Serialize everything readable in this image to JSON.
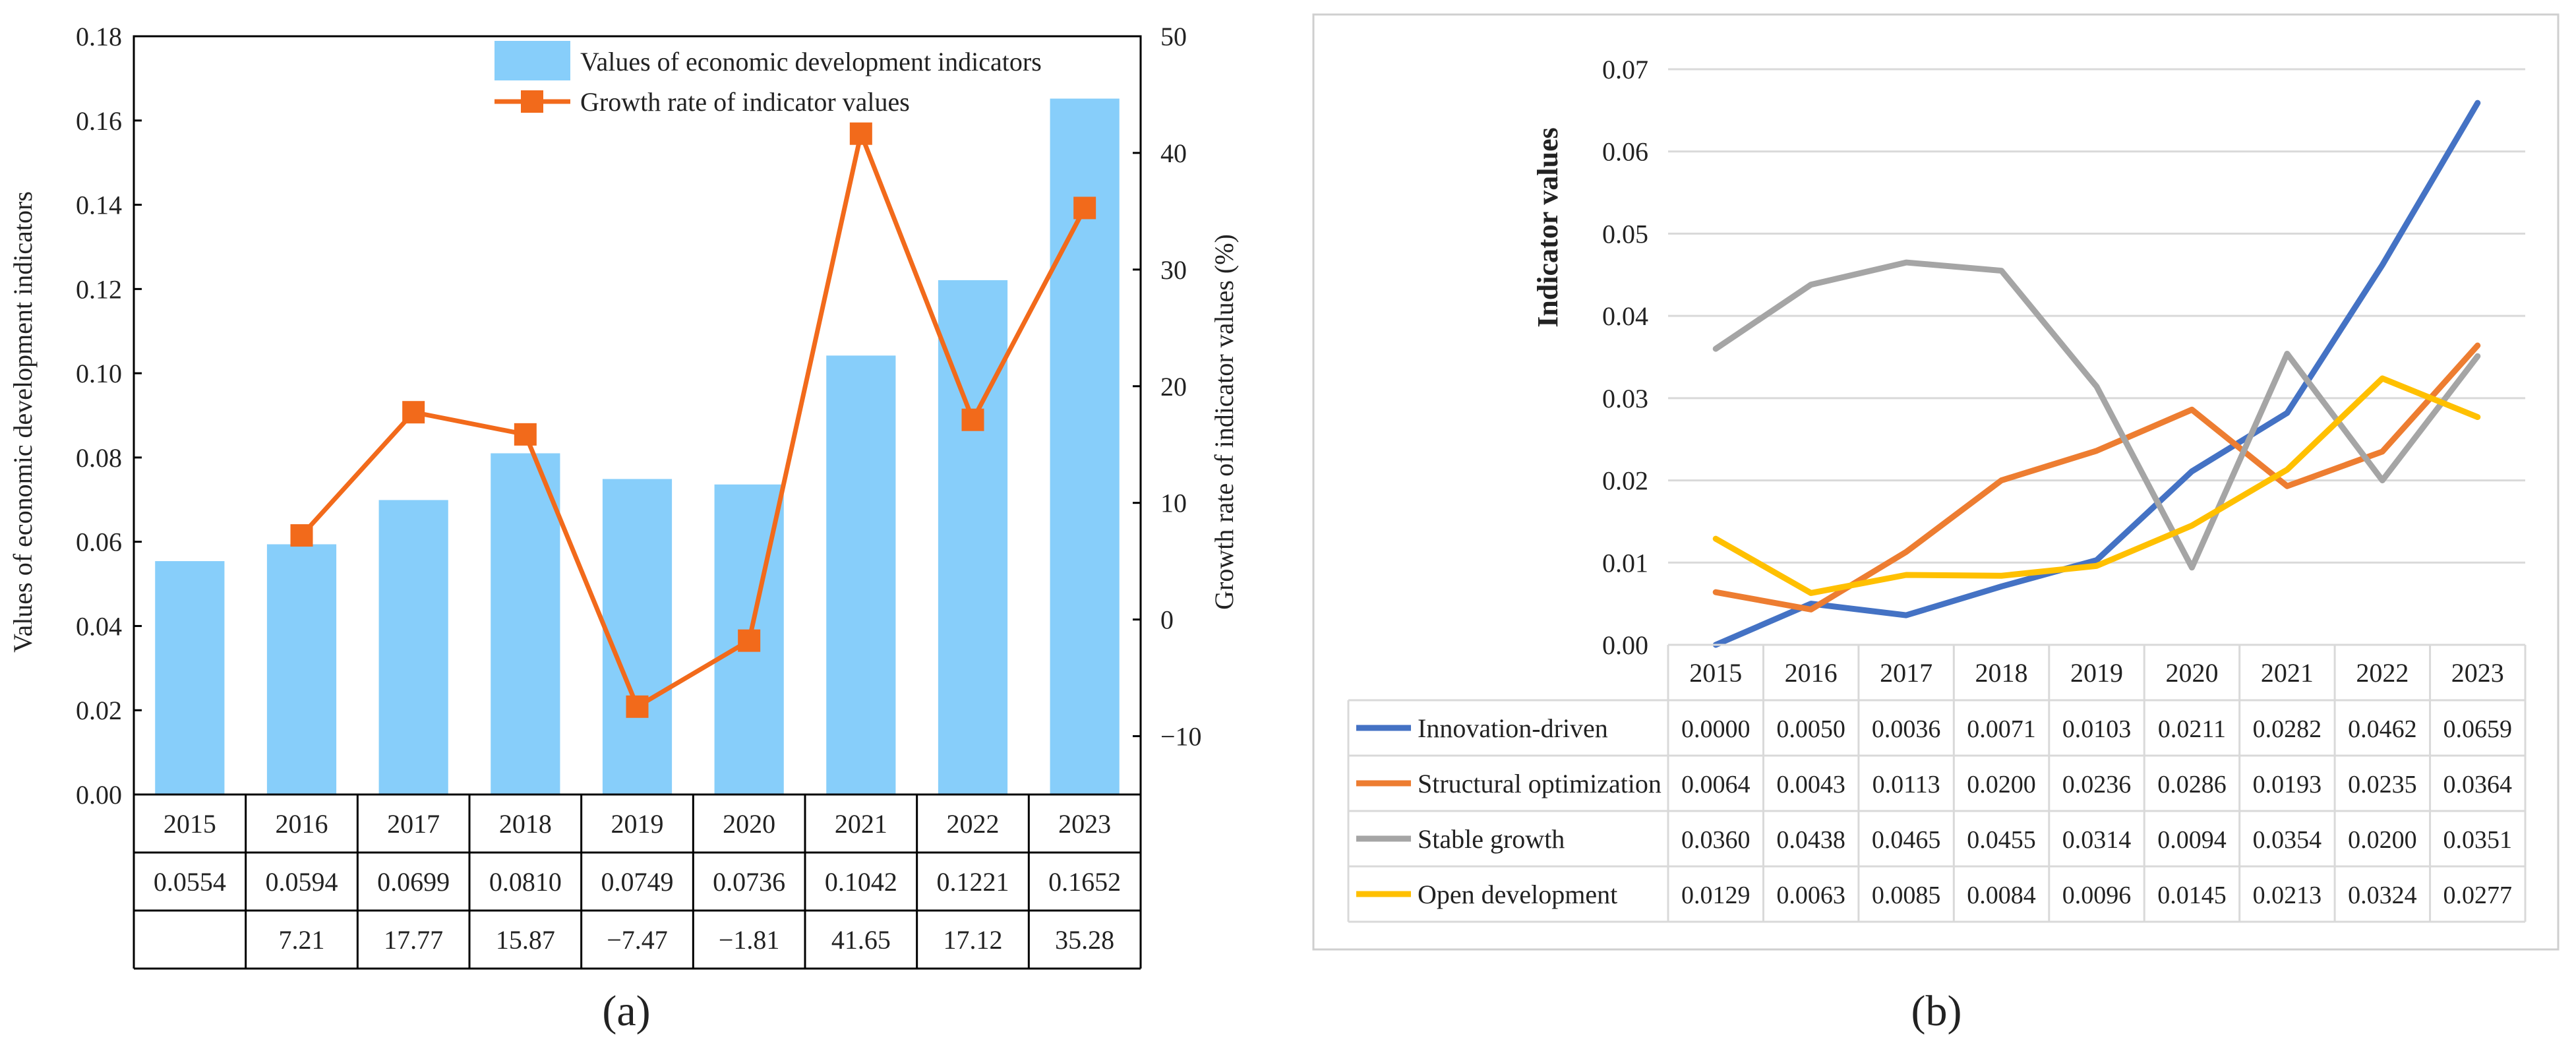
{
  "chart_data": [
    {
      "type": "bar+line",
      "panel_label": "(a)",
      "categories": [
        "2015",
        "2016",
        "2017",
        "2018",
        "2019",
        "2020",
        "2021",
        "2022",
        "2023"
      ],
      "series": [
        {
          "name": "Values of economic development indicators",
          "kind": "bar",
          "axis": "left",
          "color": "#87CEFA",
          "values": [
            0.0554,
            0.0594,
            0.0699,
            0.081,
            0.0749,
            0.0736,
            0.1042,
            0.1221,
            0.1652
          ]
        },
        {
          "name": "Growth rate of indicator values",
          "kind": "line",
          "axis": "right",
          "color": "#F26A1B",
          "values": [
            null,
            7.21,
            17.77,
            15.87,
            -7.47,
            -1.81,
            41.65,
            17.12,
            35.28
          ]
        }
      ],
      "table_rows": [
        [
          "0.0554",
          "0.0594",
          "0.0699",
          "0.0810",
          "0.0749",
          "0.0736",
          "0.1042",
          "0.1221",
          "0.1652"
        ],
        [
          "",
          "7.21",
          "17.77",
          "15.87",
          "−7.47",
          "−1.81",
          "41.65",
          "17.12",
          "35.28"
        ]
      ],
      "ylabel_left": "Values of economic development indicators",
      "ylabel_right": "Growth rate of indicator values (%)",
      "ylim_left": [
        0,
        0.18
      ],
      "yticks_left": [
        "0.00",
        "0.02",
        "0.04",
        "0.06",
        "0.08",
        "0.10",
        "0.12",
        "0.14",
        "0.16",
        "0.18"
      ],
      "ylim_right": [
        -15,
        50
      ],
      "yticks_right": [
        "−10",
        "0",
        "10",
        "20",
        "30",
        "40",
        "50"
      ],
      "legend_position": "top-right"
    },
    {
      "type": "line",
      "panel_label": "(b)",
      "categories": [
        "2015",
        "2016",
        "2017",
        "2018",
        "2019",
        "2020",
        "2021",
        "2022",
        "2023"
      ],
      "ylabel": "Indicator values",
      "ylim": [
        0,
        0.07
      ],
      "yticks": [
        "0.00",
        "0.01",
        "0.02",
        "0.03",
        "0.04",
        "0.05",
        "0.06",
        "0.07"
      ],
      "grid": true,
      "series": [
        {
          "name": "Innovation-driven",
          "color": "#4472C4",
          "values": [
            0.0,
            0.005,
            0.0036,
            0.0071,
            0.0103,
            0.0211,
            0.0282,
            0.0462,
            0.0659
          ],
          "labels": [
            "0.0000",
            "0.0050",
            "0.0036",
            "0.0071",
            "0.0103",
            "0.0211",
            "0.0282",
            "0.0462",
            "0.0659"
          ]
        },
        {
          "name": "Structural optimization",
          "color": "#ED7D31",
          "values": [
            0.0064,
            0.0043,
            0.0113,
            0.02,
            0.0236,
            0.0286,
            0.0193,
            0.0235,
            0.0364
          ],
          "labels": [
            "0.0064",
            "0.0043",
            "0.0113",
            "0.0200",
            "0.0236",
            "0.0286",
            "0.0193",
            "0.0235",
            "0.0364"
          ]
        },
        {
          "name": "Stable growth",
          "color": "#A5A5A5",
          "values": [
            0.036,
            0.0438,
            0.0465,
            0.0455,
            0.0314,
            0.0094,
            0.0354,
            0.02,
            0.0351
          ],
          "labels": [
            "0.0360",
            "0.0438",
            "0.0465",
            "0.0455",
            "0.0314",
            "0.0094",
            "0.0354",
            "0.0200",
            "0.0351"
          ]
        },
        {
          "name": "Open development",
          "color": "#FFC000",
          "values": [
            0.0129,
            0.0063,
            0.0085,
            0.0084,
            0.0096,
            0.0145,
            0.0213,
            0.0324,
            0.0277
          ],
          "labels": [
            "0.0129",
            "0.0063",
            "0.0085",
            "0.0084",
            "0.0096",
            "0.0145",
            "0.0213",
            "0.0324",
            "0.0277"
          ]
        }
      ]
    }
  ]
}
